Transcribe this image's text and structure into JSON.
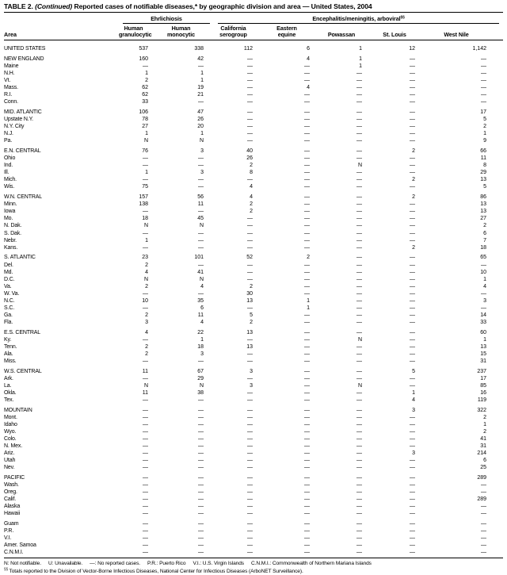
{
  "title": {
    "table_no": "TABLE 2.",
    "continued": "(Continued)",
    "rest": "Reported cases of notifiable diseases,* by geographic division and area — United States, 2004"
  },
  "header": {
    "area_label": "Area",
    "groups": [
      {
        "label": "Ehrlichiosis",
        "sup": ""
      },
      {
        "label": "Encephalitis/meningitis,  arboviral",
        "sup": "§§"
      }
    ],
    "columns": [
      [
        "Human",
        "granulocytic"
      ],
      [
        "Human",
        "monocytic"
      ],
      [
        "California",
        "serogroup"
      ],
      [
        "Eastern",
        "equine"
      ],
      [
        "Powassan"
      ],
      [
        "St. Louis"
      ],
      [
        "West Nile"
      ]
    ]
  },
  "table": {
    "sections": [
      {
        "rows": [
          {
            "a": "UNITED STATES",
            "v": [
              "537",
              "338",
              "112",
              "6",
              "1",
              "12",
              "1,142"
            ]
          }
        ]
      },
      {
        "rows": [
          {
            "a": "NEW ENGLAND",
            "v": [
              "160",
              "42",
              "—",
              "4",
              "1",
              "—",
              "—"
            ]
          },
          {
            "a": "Maine",
            "v": [
              "—",
              "—",
              "—",
              "—",
              "1",
              "—",
              "—"
            ]
          },
          {
            "a": "N.H.",
            "v": [
              "1",
              "1",
              "—",
              "—",
              "—",
              "—",
              "—"
            ]
          },
          {
            "a": "Vt.",
            "v": [
              "2",
              "1",
              "—",
              "—",
              "—",
              "—",
              "—"
            ]
          },
          {
            "a": "Mass.",
            "v": [
              "62",
              "19",
              "—",
              "4",
              "—",
              "—",
              "—"
            ]
          },
          {
            "a": "R.I.",
            "v": [
              "62",
              "21",
              "—",
              "—",
              "—",
              "—",
              "—"
            ]
          },
          {
            "a": "Conn.",
            "v": [
              "33",
              "—",
              "—",
              "—",
              "—",
              "—",
              "—"
            ]
          }
        ]
      },
      {
        "rows": [
          {
            "a": "MID. ATLANTIC",
            "v": [
              "106",
              "47",
              "—",
              "—",
              "—",
              "—",
              "17"
            ]
          },
          {
            "a": "Upstate N.Y.",
            "v": [
              "78",
              "26",
              "—",
              "—",
              "—",
              "—",
              "5"
            ]
          },
          {
            "a": "N.Y. City",
            "v": [
              "27",
              "20",
              "—",
              "—",
              "—",
              "—",
              "2"
            ]
          },
          {
            "a": "N.J.",
            "v": [
              "1",
              "1",
              "—",
              "—",
              "—",
              "—",
              "1"
            ]
          },
          {
            "a": "Pa.",
            "v": [
              "N",
              "N",
              "—",
              "—",
              "—",
              "—",
              "9"
            ]
          }
        ]
      },
      {
        "rows": [
          {
            "a": "E.N. CENTRAL",
            "v": [
              "76",
              "3",
              "40",
              "—",
              "—",
              "2",
              "66"
            ]
          },
          {
            "a": "Ohio",
            "v": [
              "—",
              "—",
              "26",
              "—",
              "—",
              "—",
              "11"
            ]
          },
          {
            "a": "Ind.",
            "v": [
              "—",
              "—",
              "2",
              "—",
              "N",
              "—",
              "8"
            ]
          },
          {
            "a": "Ill.",
            "v": [
              "1",
              "3",
              "8",
              "—",
              "—",
              "—",
              "29"
            ]
          },
          {
            "a": "Mich.",
            "v": [
              "—",
              "—",
              "—",
              "—",
              "—",
              "2",
              "13"
            ]
          },
          {
            "a": "Wis.",
            "v": [
              "75",
              "—",
              "4",
              "—",
              "—",
              "—",
              "5"
            ]
          }
        ]
      },
      {
        "rows": [
          {
            "a": "W.N. CENTRAL",
            "v": [
              "157",
              "56",
              "4",
              "—",
              "—",
              "2",
              "86"
            ]
          },
          {
            "a": "Minn.",
            "v": [
              "138",
              "11",
              "2",
              "—",
              "—",
              "—",
              "13"
            ]
          },
          {
            "a": "Iowa",
            "v": [
              "—",
              "—",
              "2",
              "—",
              "—",
              "—",
              "13"
            ]
          },
          {
            "a": "Mo.",
            "v": [
              "18",
              "45",
              "—",
              "—",
              "—",
              "—",
              "27"
            ]
          },
          {
            "a": "N. Dak.",
            "v": [
              "N",
              "N",
              "—",
              "—",
              "—",
              "—",
              "2"
            ]
          },
          {
            "a": "S. Dak.",
            "v": [
              "—",
              "—",
              "—",
              "—",
              "—",
              "—",
              "6"
            ]
          },
          {
            "a": "Nebr.",
            "v": [
              "1",
              "—",
              "—",
              "—",
              "—",
              "—",
              "7"
            ]
          },
          {
            "a": "Kans.",
            "v": [
              "—",
              "—",
              "—",
              "—",
              "—",
              "2",
              "18"
            ]
          }
        ]
      },
      {
        "rows": [
          {
            "a": "S. ATLANTIC",
            "v": [
              "23",
              "101",
              "52",
              "2",
              "—",
              "—",
              "65"
            ]
          },
          {
            "a": "Del.",
            "v": [
              "2",
              "—",
              "—",
              "—",
              "—",
              "—",
              "—"
            ]
          },
          {
            "a": "Md.",
            "v": [
              "4",
              "41",
              "—",
              "—",
              "—",
              "—",
              "10"
            ]
          },
          {
            "a": "D.C.",
            "v": [
              "N",
              "N",
              "—",
              "—",
              "—",
              "—",
              "1"
            ]
          },
          {
            "a": "Va.",
            "v": [
              "2",
              "4",
              "2",
              "—",
              "—",
              "—",
              "4"
            ]
          },
          {
            "a": "W. Va.",
            "v": [
              "—",
              "—",
              "30",
              "—",
              "—",
              "—",
              "—"
            ]
          },
          {
            "a": "N.C.",
            "v": [
              "10",
              "35",
              "13",
              "1",
              "—",
              "—",
              "3"
            ]
          },
          {
            "a": "S.C.",
            "v": [
              "—",
              "6",
              "—",
              "1",
              "—",
              "—",
              "—"
            ]
          },
          {
            "a": "Ga.",
            "v": [
              "2",
              "11",
              "5",
              "—",
              "—",
              "—",
              "14"
            ]
          },
          {
            "a": "Fla.",
            "v": [
              "3",
              "4",
              "2",
              "—",
              "—",
              "—",
              "33"
            ]
          }
        ]
      },
      {
        "rows": [
          {
            "a": "E.S. CENTRAL",
            "v": [
              "4",
              "22",
              "13",
              "—",
              "—",
              "—",
              "60"
            ]
          },
          {
            "a": "Ky.",
            "v": [
              "—",
              "1",
              "—",
              "—",
              "N",
              "—",
              "1"
            ]
          },
          {
            "a": "Tenn.",
            "v": [
              "2",
              "18",
              "13",
              "—",
              "—",
              "—",
              "13"
            ]
          },
          {
            "a": "Ala.",
            "v": [
              "2",
              "3",
              "—",
              "—",
              "—",
              "—",
              "15"
            ]
          },
          {
            "a": "Miss.",
            "v": [
              "—",
              "—",
              "—",
              "—",
              "—",
              "—",
              "31"
            ]
          }
        ]
      },
      {
        "rows": [
          {
            "a": "W.S. CENTRAL",
            "v": [
              "11",
              "67",
              "3",
              "—",
              "—",
              "5",
              "237"
            ]
          },
          {
            "a": "Ark.",
            "v": [
              "—",
              "29",
              "—",
              "—",
              "—",
              "—",
              "17"
            ]
          },
          {
            "a": "La.",
            "v": [
              "N",
              "N",
              "3",
              "—",
              "N",
              "—",
              "85"
            ]
          },
          {
            "a": "Okla.",
            "v": [
              "11",
              "38",
              "—",
              "—",
              "—",
              "1",
              "16"
            ]
          },
          {
            "a": "Tex.",
            "v": [
              "—",
              "—",
              "—",
              "—",
              "—",
              "4",
              "119"
            ]
          }
        ]
      },
      {
        "rows": [
          {
            "a": "MOUNTAIN",
            "v": [
              "—",
              "—",
              "—",
              "—",
              "—",
              "3",
              "322"
            ]
          },
          {
            "a": "Mont.",
            "v": [
              "—",
              "—",
              "—",
              "—",
              "—",
              "—",
              "2"
            ]
          },
          {
            "a": "Idaho",
            "v": [
              "—",
              "—",
              "—",
              "—",
              "—",
              "—",
              "1"
            ]
          },
          {
            "a": "Wyo.",
            "v": [
              "—",
              "—",
              "—",
              "—",
              "—",
              "—",
              "2"
            ]
          },
          {
            "a": "Colo.",
            "v": [
              "—",
              "—",
              "—",
              "—",
              "—",
              "—",
              "41"
            ]
          },
          {
            "a": "N. Mex.",
            "v": [
              "—",
              "—",
              "—",
              "—",
              "—",
              "—",
              "31"
            ]
          },
          {
            "a": "Ariz.",
            "v": [
              "—",
              "—",
              "—",
              "—",
              "—",
              "3",
              "214"
            ]
          },
          {
            "a": "Utah",
            "v": [
              "—",
              "—",
              "—",
              "—",
              "—",
              "—",
              "6"
            ]
          },
          {
            "a": "Nev.",
            "v": [
              "—",
              "—",
              "—",
              "—",
              "—",
              "—",
              "25"
            ]
          }
        ]
      },
      {
        "rows": [
          {
            "a": "PACIFIC",
            "v": [
              "—",
              "—",
              "—",
              "—",
              "—",
              "—",
              "289"
            ]
          },
          {
            "a": "Wash.",
            "v": [
              "—",
              "—",
              "—",
              "—",
              "—",
              "—",
              "—"
            ]
          },
          {
            "a": "Oreg.",
            "v": [
              "—",
              "—",
              "—",
              "—",
              "—",
              "—",
              "—"
            ]
          },
          {
            "a": "Calif.",
            "v": [
              "—",
              "—",
              "—",
              "—",
              "—",
              "—",
              "289"
            ]
          },
          {
            "a": "Alaska",
            "v": [
              "—",
              "—",
              "—",
              "—",
              "—",
              "—",
              "—"
            ]
          },
          {
            "a": "Hawaii",
            "v": [
              "—",
              "—",
              "—",
              "—",
              "—",
              "—",
              "—"
            ]
          }
        ]
      },
      {
        "rows": [
          {
            "a": "Guam",
            "v": [
              "—",
              "—",
              "—",
              "—",
              "—",
              "—",
              "—"
            ]
          },
          {
            "a": "P.R.",
            "v": [
              "—",
              "—",
              "—",
              "—",
              "—",
              "—",
              "—"
            ]
          },
          {
            "a": "V.I.",
            "v": [
              "—",
              "—",
              "—",
              "—",
              "—",
              "—",
              "—"
            ]
          },
          {
            "a": "Amer. Samoa",
            "v": [
              "—",
              "—",
              "—",
              "—",
              "—",
              "—",
              "—"
            ]
          },
          {
            "a": "C.N.M.I.",
            "v": [
              "—",
              "—",
              "—",
              "—",
              "—",
              "—",
              "—"
            ]
          }
        ]
      }
    ]
  },
  "footnotes": {
    "line1": [
      "N: Not notifiable.",
      "U: Unavailable.",
      "—: No reported cases.",
      "P.R.: Puerto Rico",
      "V.I.: U.S. Virgin Islands",
      "C.N.M.I.: Commonwealth of Northern Mariana Islands"
    ],
    "line2_sup": "§§",
    "line2": "Totals reported to the Division of Vector-Borne Infectious Diseases, National Center for Infectious Diseases (ArboNET Surveillance)."
  }
}
